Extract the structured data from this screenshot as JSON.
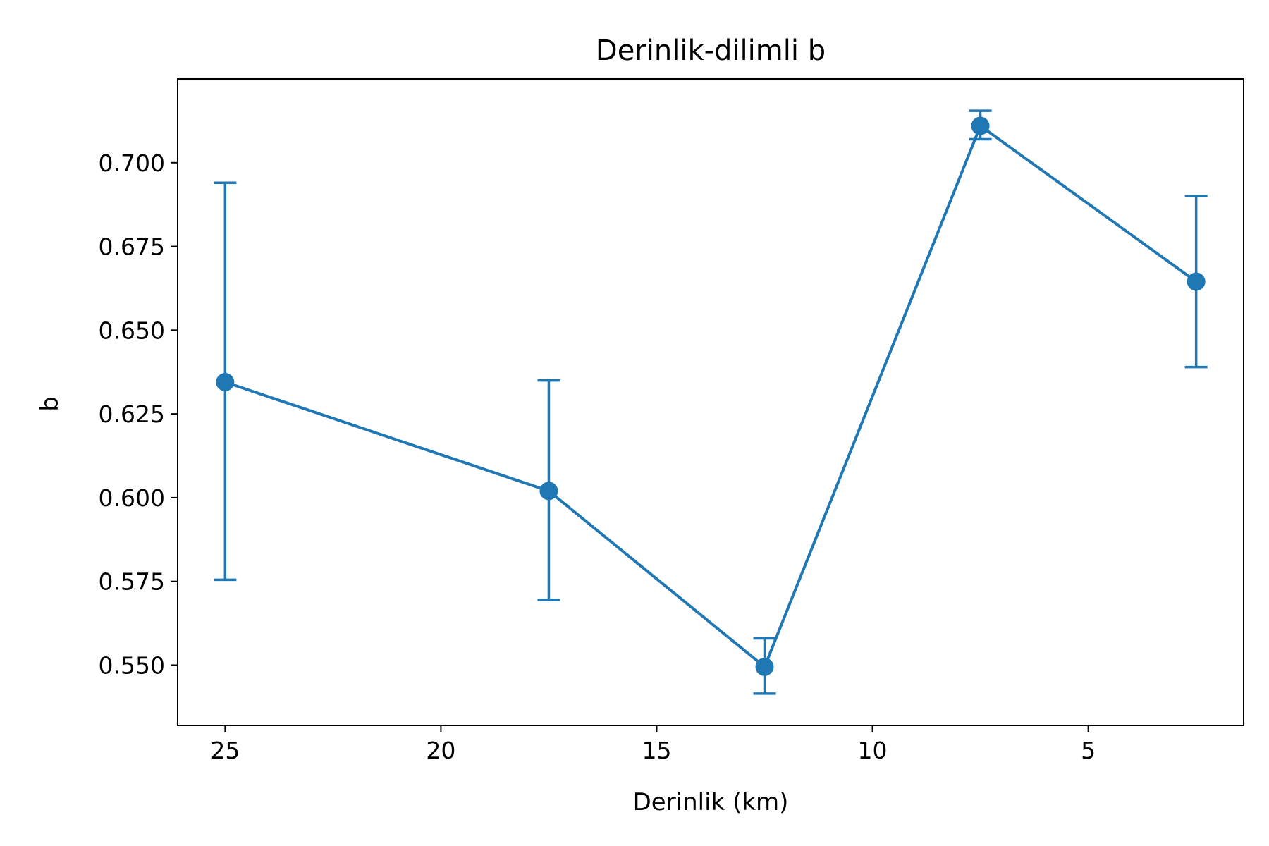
{
  "chart_data": {
    "type": "line",
    "title": "Derinlik-dilimli b",
    "xlabel": "Derinlik (km)",
    "ylabel": "b",
    "x_inverted": true,
    "xlim": [
      26.1,
      1.4
    ],
    "ylim": [
      0.532,
      0.725
    ],
    "x_ticks": [
      25,
      20,
      15,
      10,
      5
    ],
    "x_tick_labels": [
      "25",
      "20",
      "15",
      "10",
      "5"
    ],
    "y_ticks": [
      0.55,
      0.575,
      0.6,
      0.625,
      0.65,
      0.675,
      0.7
    ],
    "y_tick_labels": [
      "0.550",
      "0.575",
      "0.600",
      "0.625",
      "0.650",
      "0.675",
      "0.700"
    ],
    "grid": false,
    "legend": "none",
    "color": "#1f77b4",
    "series": [
      {
        "x": [
          25,
          17.5,
          12.5,
          7.5,
          2.5
        ],
        "y": [
          0.6345,
          0.602,
          0.5495,
          0.711,
          0.6645
        ],
        "err_low": [
          0.5755,
          0.5695,
          0.5415,
          0.707,
          0.639
        ],
        "err_high": [
          0.694,
          0.635,
          0.558,
          0.7155,
          0.69
        ]
      }
    ]
  }
}
